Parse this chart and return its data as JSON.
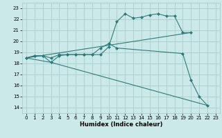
{
  "xlabel": "Humidex (Indice chaleur)",
  "bg_color": "#cce9e9",
  "grid_color": "#aacccc",
  "line_color": "#2d7a7a",
  "xlim": [
    -0.5,
    23.5
  ],
  "ylim": [
    13.5,
    23.5
  ],
  "xticks": [
    0,
    1,
    2,
    3,
    4,
    5,
    6,
    7,
    8,
    9,
    10,
    11,
    12,
    13,
    14,
    15,
    16,
    17,
    18,
    19,
    20,
    21,
    22,
    23
  ],
  "yticks": [
    14,
    15,
    16,
    17,
    18,
    19,
    20,
    21,
    22,
    23
  ],
  "series1_x": [
    0,
    1,
    2,
    3,
    4,
    5,
    6,
    7,
    8,
    9,
    10,
    11,
    12,
    13,
    14,
    15,
    16,
    17,
    18,
    19,
    20
  ],
  "series1_y": [
    18.5,
    18.7,
    18.7,
    18.5,
    18.8,
    18.8,
    18.8,
    18.8,
    18.8,
    18.8,
    19.5,
    21.8,
    22.5,
    22.1,
    22.2,
    22.4,
    22.5,
    22.3,
    22.3,
    20.8,
    20.8
  ],
  "series2_x": [
    0,
    1,
    2,
    3,
    4,
    5,
    6,
    7,
    8,
    9,
    10,
    11,
    19,
    20,
    21,
    22
  ],
  "series2_y": [
    18.5,
    18.7,
    18.7,
    18.1,
    18.7,
    18.8,
    18.8,
    18.8,
    18.8,
    19.4,
    19.8,
    19.4,
    18.9,
    16.5,
    15.0,
    14.2
  ],
  "series3_x": [
    0,
    20
  ],
  "series3_y": [
    18.5,
    20.8
  ],
  "series4_x": [
    0,
    3,
    22
  ],
  "series4_y": [
    18.5,
    18.1,
    14.2
  ]
}
